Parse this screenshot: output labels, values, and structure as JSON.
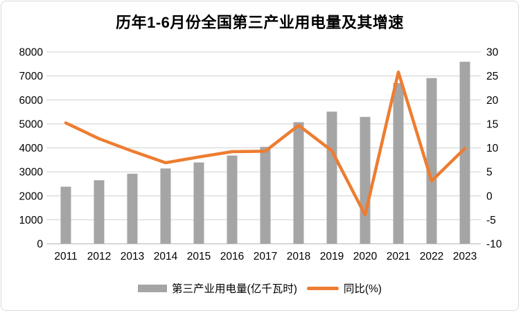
{
  "frame": {
    "background": "#FFFFFF",
    "border_color": "#D9D9D9"
  },
  "chart_data": {
    "type": "bar+line",
    "title": "历年1-6月份全国第三产业用电量及其增速",
    "categories": [
      "2011",
      "2012",
      "2013",
      "2014",
      "2015",
      "2016",
      "2017",
      "2018",
      "2019",
      "2020",
      "2021",
      "2022",
      "2023"
    ],
    "series": [
      {
        "name": "第三产业用电量(亿千瓦时)",
        "type": "bar",
        "axis": "left",
        "color": "#A5A5A5",
        "values": [
          2380,
          2650,
          2920,
          3140,
          3390,
          3680,
          4040,
          5070,
          5510,
          5290,
          6700,
          6910,
          7590
        ]
      },
      {
        "name": "同比(%)",
        "type": "line",
        "axis": "right",
        "color": "#ED7D31",
        "values": [
          15.2,
          11.9,
          9.3,
          6.9,
          8.1,
          9.2,
          9.3,
          14.7,
          9.4,
          -4.0,
          25.8,
          3.1,
          9.9
        ]
      }
    ],
    "axes": {
      "left": {
        "min": 0,
        "max": 8000,
        "step": 1000,
        "tick_labels": [
          "0",
          "1000",
          "2000",
          "3000",
          "4000",
          "5000",
          "6000",
          "7000",
          "8000"
        ]
      },
      "right": {
        "min": -10,
        "max": 30,
        "step": 5,
        "tick_labels": [
          "-10",
          "-5",
          "0",
          "5",
          "10",
          "15",
          "20",
          "25",
          "30"
        ]
      }
    },
    "grid": true,
    "legend_position": "bottom",
    "colors": {
      "grid": "#D9D9D9",
      "axis_line": "#BFBFBF",
      "text": "#000000"
    }
  }
}
